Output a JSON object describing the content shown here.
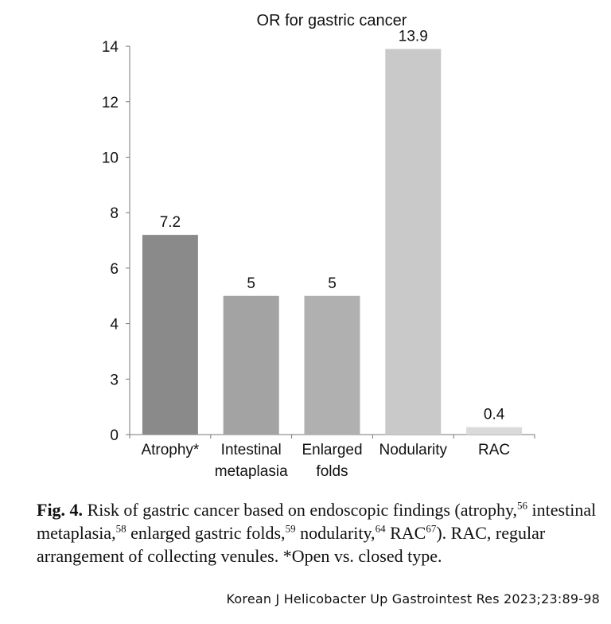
{
  "chart_data": {
    "type": "bar",
    "title": "OR for gastric cancer",
    "categories": [
      {
        "lines": [
          "Atrophy*"
        ]
      },
      {
        "lines": [
          "Intestinal",
          "metaplasia"
        ]
      },
      {
        "lines": [
          "Enlarged",
          "folds"
        ]
      },
      {
        "lines": [
          "Nodularity"
        ]
      },
      {
        "lines": [
          "RAC"
        ]
      }
    ],
    "values": [
      7.2,
      5,
      5,
      13.9,
      0.4
    ],
    "data_labels": [
      "7.2",
      "5",
      "5",
      "13.9",
      "0.4"
    ],
    "bar_colors": [
      "#8a8a8a",
      "#a3a3a3",
      "#b0b0b0",
      "#c9c9c9",
      "#dadada"
    ],
    "yticks": [
      "0",
      "3",
      "4",
      "6",
      "8",
      "10",
      "12",
      "14"
    ],
    "ylim": [
      0,
      14
    ],
    "grid": false,
    "xlabel": "",
    "ylabel": ""
  },
  "caption": {
    "fig_label": "Fig. 4.",
    "text_1": " Risk of gastric cancer based on endoscopic findings (atrophy,",
    "ref_1": "56",
    "text_2": " intestinal metaplasia,",
    "ref_2": "58",
    "text_3": " enlarged gastric folds,",
    "ref_3": "59",
    "text_4": " nodularity,",
    "ref_4": "64",
    "text_5": " RAC",
    "ref_5": "67",
    "text_6": "). RAC, regular arrangement of collecting venules. *Open vs. closed type."
  },
  "citation": "Korean J Helicobacter Up Gastrointest Res 2023;23:89-98"
}
